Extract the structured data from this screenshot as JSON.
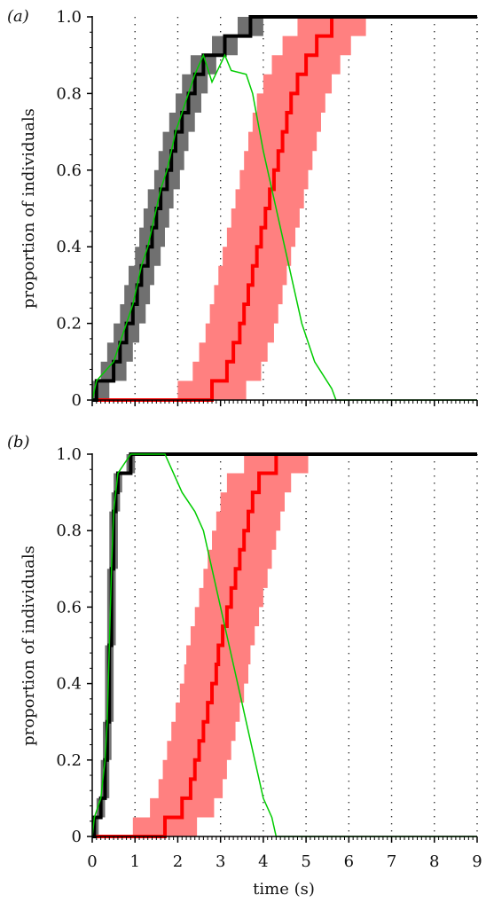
{
  "chart_data": {
    "type": "line",
    "ylabel": "proportion of individuals",
    "xlabel": "time (s)",
    "xlim": [
      0,
      9
    ],
    "ylim": [
      0,
      1
    ],
    "xticks": [
      "0",
      "1",
      "2",
      "3",
      "4",
      "5",
      "6",
      "7",
      "8",
      "9"
    ],
    "yticks": [
      "0",
      "0.2",
      "0.4",
      "0.6",
      "0.8",
      "1.0"
    ],
    "grid": "vertical dotted at each integer second",
    "colors": {
      "black": "#000000",
      "grey_band": "#707070",
      "red": "#ff0000",
      "red_band": "#ff8080",
      "green": "#00cc00"
    },
    "panels": [
      {
        "label": "(a)",
        "black": [
          [
            0,
            0
          ],
          [
            0.1,
            0.05
          ],
          [
            0.5,
            0.1
          ],
          [
            0.65,
            0.15
          ],
          [
            0.8,
            0.2
          ],
          [
            0.95,
            0.25
          ],
          [
            1.05,
            0.3
          ],
          [
            1.15,
            0.35
          ],
          [
            1.3,
            0.4
          ],
          [
            1.4,
            0.45
          ],
          [
            1.5,
            0.5
          ],
          [
            1.6,
            0.55
          ],
          [
            1.75,
            0.6
          ],
          [
            1.85,
            0.65
          ],
          [
            1.95,
            0.7
          ],
          [
            2.1,
            0.75
          ],
          [
            2.25,
            0.8
          ],
          [
            2.4,
            0.85
          ],
          [
            2.6,
            0.9
          ],
          [
            3.1,
            0.95
          ],
          [
            3.7,
            1.0
          ],
          [
            9,
            1.0
          ]
        ],
        "black_band_halfwidth_s": 0.3,
        "red": [
          [
            0,
            0
          ],
          [
            2.8,
            0
          ],
          [
            2.8,
            0.05
          ],
          [
            3.15,
            0.1
          ],
          [
            3.3,
            0.15
          ],
          [
            3.45,
            0.2
          ],
          [
            3.55,
            0.25
          ],
          [
            3.65,
            0.3
          ],
          [
            3.75,
            0.35
          ],
          [
            3.85,
            0.4
          ],
          [
            3.95,
            0.45
          ],
          [
            4.05,
            0.5
          ],
          [
            4.15,
            0.55
          ],
          [
            4.25,
            0.6
          ],
          [
            4.35,
            0.65
          ],
          [
            4.45,
            0.7
          ],
          [
            4.55,
            0.75
          ],
          [
            4.65,
            0.8
          ],
          [
            4.8,
            0.85
          ],
          [
            5.0,
            0.9
          ],
          [
            5.25,
            0.95
          ],
          [
            5.6,
            1.0
          ],
          [
            9,
            1.0
          ]
        ],
        "red_band_halfwidth_s": 0.8,
        "green": [
          [
            0,
            0
          ],
          [
            0.1,
            0.05
          ],
          [
            0.5,
            0.1
          ],
          [
            0.65,
            0.15
          ],
          [
            0.8,
            0.2
          ],
          [
            0.95,
            0.25
          ],
          [
            1.05,
            0.3
          ],
          [
            1.15,
            0.35
          ],
          [
            1.3,
            0.4
          ],
          [
            1.4,
            0.45
          ],
          [
            1.5,
            0.5
          ],
          [
            1.6,
            0.55
          ],
          [
            1.75,
            0.6
          ],
          [
            1.85,
            0.65
          ],
          [
            1.95,
            0.7
          ],
          [
            2.1,
            0.75
          ],
          [
            2.25,
            0.8
          ],
          [
            2.4,
            0.85
          ],
          [
            2.6,
            0.9
          ],
          [
            2.8,
            0.83
          ],
          [
            3.1,
            0.9
          ],
          [
            3.25,
            0.86
          ],
          [
            3.6,
            0.85
          ],
          [
            3.75,
            0.8
          ],
          [
            4.0,
            0.65
          ],
          [
            4.3,
            0.5
          ],
          [
            4.6,
            0.35
          ],
          [
            4.9,
            0.2
          ],
          [
            5.2,
            0.1
          ],
          [
            5.6,
            0.03
          ],
          [
            5.7,
            0
          ],
          [
            9,
            0
          ]
        ]
      },
      {
        "label": "(b)",
        "black": [
          [
            0,
            0
          ],
          [
            0.05,
            0.05
          ],
          [
            0.2,
            0.1
          ],
          [
            0.3,
            0.2
          ],
          [
            0.35,
            0.3
          ],
          [
            0.4,
            0.5
          ],
          [
            0.45,
            0.7
          ],
          [
            0.5,
            0.85
          ],
          [
            0.55,
            0.9
          ],
          [
            0.6,
            0.95
          ],
          [
            0.9,
            1.0
          ],
          [
            9,
            1.0
          ]
        ],
        "black_band_halfwidth_s": 0.1,
        "red": [
          [
            0,
            0
          ],
          [
            1.7,
            0
          ],
          [
            1.7,
            0.05
          ],
          [
            2.1,
            0.1
          ],
          [
            2.3,
            0.15
          ],
          [
            2.4,
            0.2
          ],
          [
            2.5,
            0.25
          ],
          [
            2.6,
            0.3
          ],
          [
            2.7,
            0.35
          ],
          [
            2.8,
            0.4
          ],
          [
            2.9,
            0.45
          ],
          [
            2.95,
            0.5
          ],
          [
            3.05,
            0.55
          ],
          [
            3.15,
            0.6
          ],
          [
            3.25,
            0.65
          ],
          [
            3.35,
            0.7
          ],
          [
            3.45,
            0.75
          ],
          [
            3.55,
            0.8
          ],
          [
            3.65,
            0.85
          ],
          [
            3.75,
            0.9
          ],
          [
            3.9,
            0.95
          ],
          [
            4.3,
            1.0
          ],
          [
            9,
            1.0
          ]
        ],
        "red_band_halfwidth_s": 0.75,
        "green": [
          [
            0,
            0
          ],
          [
            0.05,
            0.05
          ],
          [
            0.2,
            0.1
          ],
          [
            0.3,
            0.2
          ],
          [
            0.35,
            0.3
          ],
          [
            0.4,
            0.5
          ],
          [
            0.45,
            0.7
          ],
          [
            0.5,
            0.85
          ],
          [
            0.55,
            0.9
          ],
          [
            0.6,
            0.95
          ],
          [
            0.9,
            1.0
          ],
          [
            1.7,
            1.0
          ],
          [
            2.1,
            0.9
          ],
          [
            2.4,
            0.85
          ],
          [
            2.6,
            0.8
          ],
          [
            2.8,
            0.7
          ],
          [
            3.0,
            0.6
          ],
          [
            3.2,
            0.5
          ],
          [
            3.4,
            0.4
          ],
          [
            3.6,
            0.3
          ],
          [
            3.8,
            0.2
          ],
          [
            4.0,
            0.1
          ],
          [
            4.2,
            0.05
          ],
          [
            4.3,
            0
          ],
          [
            9,
            0
          ]
        ]
      }
    ]
  }
}
